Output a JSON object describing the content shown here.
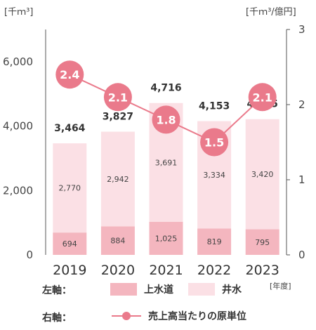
{
  "units": {
    "left": "[千ｍ³]",
    "right": "[千ｍ³/億円]",
    "x": "[年度]"
  },
  "legend": {
    "left_axis": "左軸：",
    "right_axis": "右軸：",
    "water_supply": "上水道",
    "well_water": "井水",
    "unit_cost": "売上高当たりの原単位"
  },
  "colors": {
    "water_supply": "#f4b6bf",
    "well_water": "#fbe0e5",
    "unit_cost": "#ea7a8b",
    "unit_cost_bubble": "#ea7a8b",
    "grid_axis": "#555555"
  },
  "chart_data": {
    "type": "bar",
    "categories": [
      "2019",
      "2020",
      "2021",
      "2022",
      "2023"
    ],
    "series": [
      {
        "name": "上水道",
        "values": [
          694,
          884,
          1025,
          819,
          795
        ],
        "labels": [
          "694",
          "884",
          "1,025",
          "819",
          "795"
        ]
      },
      {
        "name": "井水",
        "values": [
          2770,
          2942,
          3691,
          3334,
          3420
        ],
        "labels": [
          "2,770",
          "2,942",
          "3,691",
          "3,334",
          "3,420"
        ]
      }
    ],
    "totals": [
      3464,
      3827,
      4716,
      4153,
      4215
    ],
    "total_labels": [
      "3,464",
      "3,827",
      "4,716",
      "4,153",
      "4,215"
    ],
    "line_series": {
      "name": "売上高当たりの原単位",
      "values": [
        2.4,
        2.1,
        1.8,
        1.5,
        2.1
      ],
      "labels": [
        "2.4",
        "2.1",
        "1.8",
        "1.5",
        "2.1"
      ]
    },
    "y_left": {
      "ylim": [
        0,
        7000
      ],
      "ticks": [
        0,
        2000,
        4000,
        6000
      ],
      "tick_labels": [
        "0",
        "2,000",
        "4,000",
        "6,000"
      ]
    },
    "y_right": {
      "ylim": [
        0,
        3
      ],
      "ticks": [
        0,
        1,
        2,
        3
      ],
      "tick_labels": [
        "0",
        "1",
        "2",
        "3"
      ]
    },
    "stacked": true,
    "grid": false
  }
}
